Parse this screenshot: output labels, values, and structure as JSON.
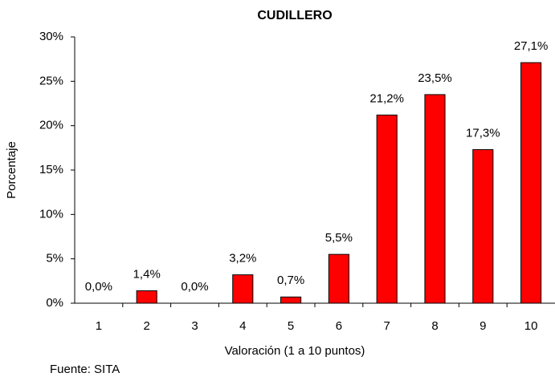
{
  "chart_data": {
    "type": "bar",
    "title": "CUDILLERO",
    "categories": [
      "1",
      "2",
      "3",
      "4",
      "5",
      "6",
      "7",
      "8",
      "9",
      "10"
    ],
    "values": [
      0,
      1.4,
      0,
      3.2,
      0.7,
      5.5,
      21.2,
      23.5,
      17.3,
      27.1
    ],
    "value_labels": [
      "0,0%",
      "1,4%",
      "0,0%",
      "3,2%",
      "0,7%",
      "5,5%",
      "21,2%",
      "23,5%",
      "17,3%",
      "27,1%"
    ],
    "color": "#ff0000",
    "ylim": [
      0,
      30
    ],
    "yticks": [
      {
        "value": 0,
        "label": "0%"
      },
      {
        "value": 5,
        "label": "5%"
      },
      {
        "value": 10,
        "label": "10%"
      },
      {
        "value": 15,
        "label": "15%"
      },
      {
        "value": 20,
        "label": "20%"
      },
      {
        "value": 25,
        "label": "25%"
      },
      {
        "value": 30,
        "label": "30%"
      }
    ],
    "x_label": "Valoración (1 a 10 puntos)",
    "y_label": "Porcentaje",
    "source": "Fuente: SITA",
    "grid": false
  }
}
